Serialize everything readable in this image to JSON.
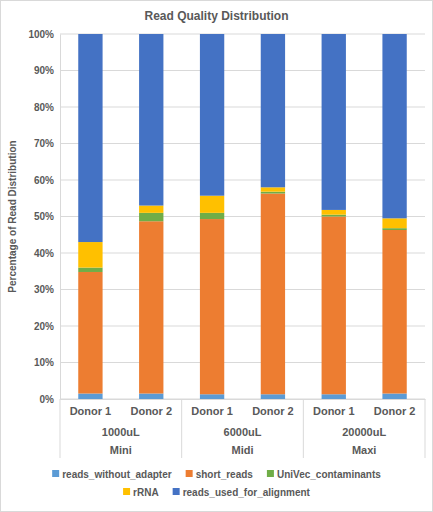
{
  "chart_data": {
    "type": "bar",
    "title": "Read Quality Distribution",
    "y_label": "Percentage of Read Distribution",
    "categories": [
      "Donor 1",
      "Donor 2",
      "Donor 1",
      "Donor 2",
      "Donor 1",
      "Donor 2"
    ],
    "groups": [
      [
        "1000uL",
        "Mini"
      ],
      [
        "6000uL",
        "Midi"
      ],
      [
        "20000uL",
        "Maxi"
      ]
    ],
    "series": [
      {
        "name": "reads_without_adapter",
        "color": "#5b9bd5",
        "values": [
          1.5,
          1.5,
          1.3,
          1.3,
          1.3,
          1.5
        ]
      },
      {
        "name": "short_reads",
        "color": "#ed7d31",
        "values": [
          33.3,
          47.2,
          48.0,
          55.0,
          48.7,
          44.8
        ]
      },
      {
        "name": "UniVec_contaminants",
        "color": "#70ad47",
        "values": [
          1.2,
          2.3,
          1.7,
          0.5,
          0.5,
          0.5
        ]
      },
      {
        "name": "rRNA",
        "color": "#ffc000",
        "values": [
          7.0,
          2.0,
          4.7,
          1.2,
          1.3,
          2.7
        ]
      },
      {
        "name": "reads_used_for_alignment",
        "color": "#4472c4",
        "values": [
          57.0,
          47.0,
          44.3,
          42.0,
          48.2,
          50.5
        ]
      }
    ],
    "stacked": true,
    "ylim": [
      0,
      100
    ],
    "yticks": [
      {
        "value": 0,
        "label": "0%"
      },
      {
        "value": 10,
        "label": "10%"
      },
      {
        "value": 20,
        "label": "20%"
      },
      {
        "value": 30,
        "label": "30%"
      },
      {
        "value": 40,
        "label": "40%"
      },
      {
        "value": 50,
        "label": "50%"
      },
      {
        "value": 60,
        "label": "60%"
      },
      {
        "value": 70,
        "label": "70%"
      },
      {
        "value": 80,
        "label": "80%"
      },
      {
        "value": 90,
        "label": "90%"
      },
      {
        "value": 100,
        "label": "100%"
      }
    ],
    "grid": true,
    "legend": "bottom"
  }
}
